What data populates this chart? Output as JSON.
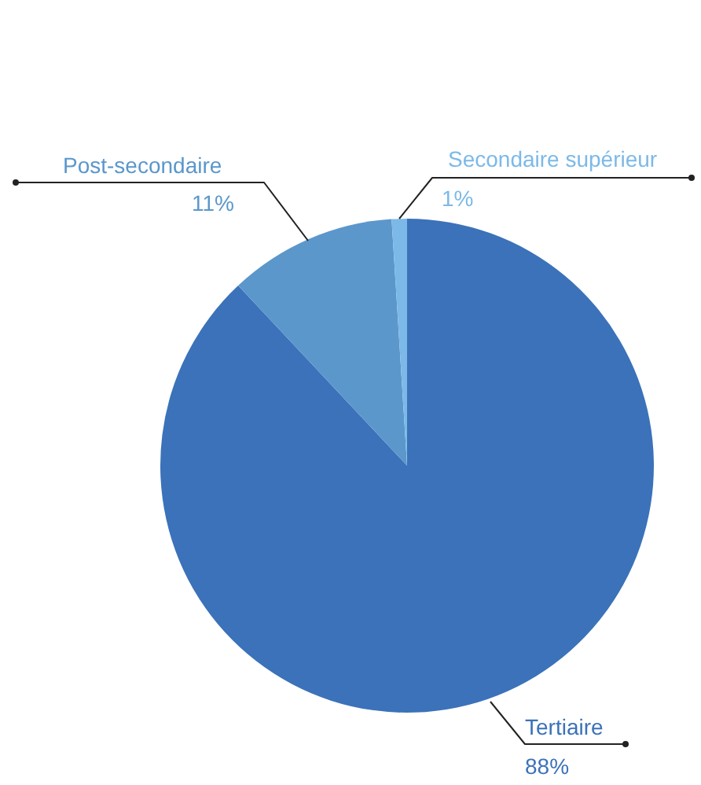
{
  "chart_data": {
    "type": "pie",
    "categories": [
      "Tertiaire",
      "Post-secondaire",
      "Secondaire supérieur"
    ],
    "values": [
      88,
      11,
      1
    ],
    "colors": [
      "#3b72b9",
      "#5b97cb",
      "#7cb9e8"
    ],
    "value_labels": [
      "88%",
      "11%",
      "1%"
    ],
    "legend": false
  }
}
